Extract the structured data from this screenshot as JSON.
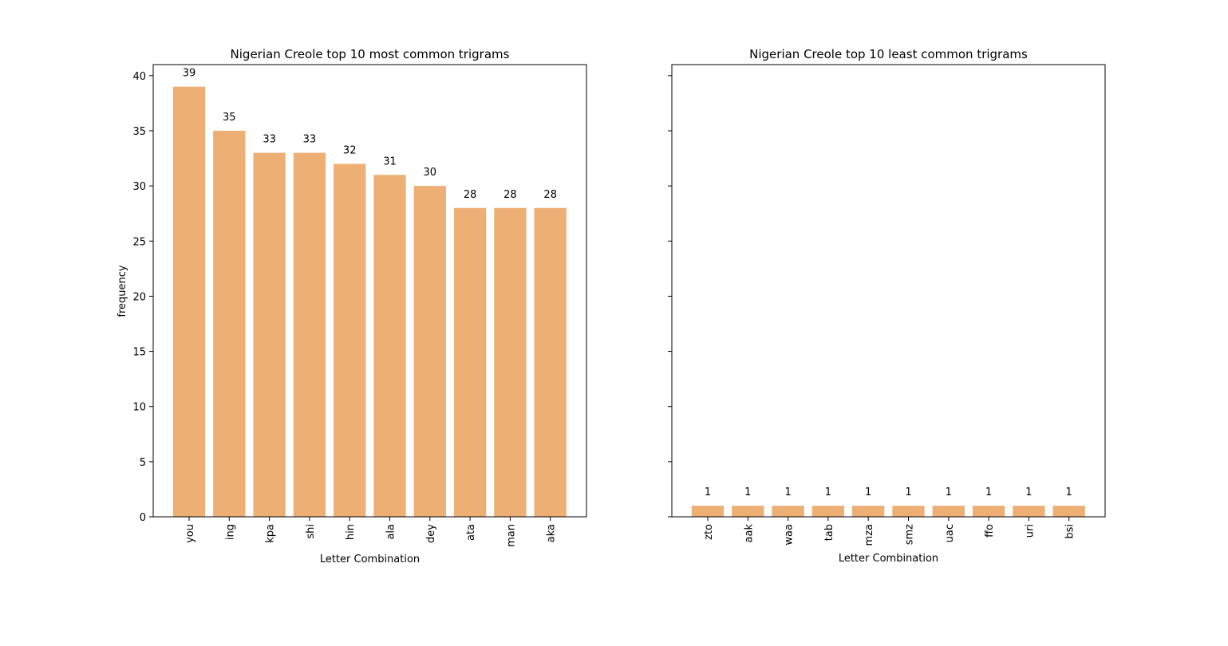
{
  "figure": {
    "background": "#ffffff",
    "bar_color": "#edaf73"
  },
  "chart_data": [
    {
      "type": "bar",
      "title": "Nigerian Creole top 10 most common trigrams",
      "xlabel": "Letter Combination",
      "ylabel": "frequency",
      "categories": [
        "you",
        "ing",
        "kpa",
        "shi",
        "hin",
        "ala",
        "dey",
        "ata",
        "man",
        "aka"
      ],
      "values": [
        39,
        35,
        33,
        33,
        32,
        31,
        30,
        28,
        28,
        28
      ],
      "ylim": [
        0,
        41
      ],
      "yticks": [
        0,
        5,
        10,
        15,
        20,
        25,
        30,
        35,
        40
      ],
      "show_ytick_labels": true,
      "grid": false,
      "xtick_rotation": "vertical"
    },
    {
      "type": "bar",
      "title": "Nigerian Creole top 10 least common trigrams",
      "xlabel": "Letter Combination",
      "ylabel": "",
      "categories": [
        "zto",
        "aak",
        "waa",
        "tab",
        "mza",
        "smz",
        "uac",
        "ffo",
        "uri",
        "bsi"
      ],
      "values": [
        1,
        1,
        1,
        1,
        1,
        1,
        1,
        1,
        1,
        1
      ],
      "ylim": [
        0,
        41
      ],
      "yticks": [
        0,
        5,
        10,
        15,
        20,
        25,
        30,
        35,
        40
      ],
      "show_ytick_labels": false,
      "grid": false,
      "xtick_rotation": "vertical"
    }
  ]
}
